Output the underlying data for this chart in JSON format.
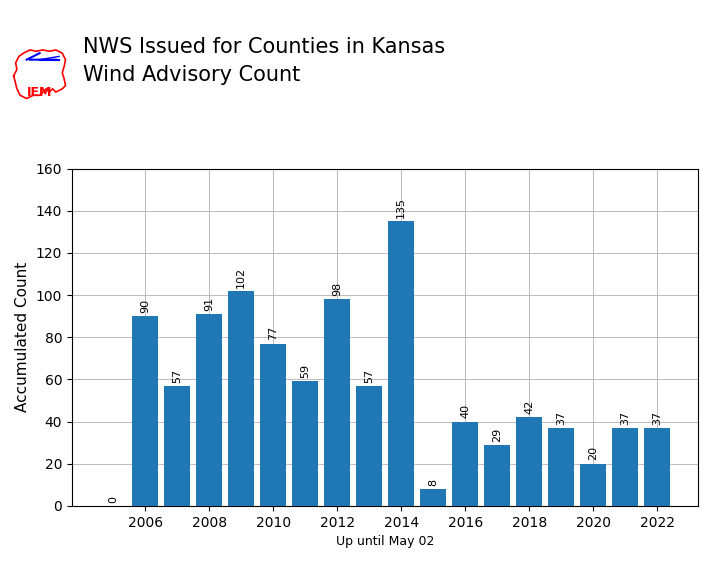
{
  "years": [
    2005,
    2006,
    2007,
    2008,
    2009,
    2010,
    2011,
    2012,
    2013,
    2014,
    2015,
    2016,
    2017,
    2018,
    2019,
    2020,
    2021,
    2022
  ],
  "values": [
    0,
    90,
    57,
    91,
    102,
    77,
    59,
    98,
    57,
    135,
    8,
    40,
    29,
    42,
    37,
    20,
    37,
    37
  ],
  "bar_color": "#1f77b4",
  "title_line1": "NWS Issued for Counties in Kansas",
  "title_line2": "Wind Advisory Count",
  "ylabel": "Accumulated Count",
  "xlabel": "Up until May 02",
  "ylim": [
    0,
    160
  ],
  "yticks": [
    0,
    20,
    40,
    60,
    80,
    100,
    120,
    140,
    160
  ],
  "xticks": [
    2006,
    2008,
    2010,
    2012,
    2014,
    2016,
    2018,
    2020,
    2022
  ],
  "background_color": "#ffffff",
  "grid_color": "#bbbbbb",
  "title_fontsize": 15,
  "tick_fontsize": 10,
  "bar_label_fontsize": 8,
  "ylabel_fontsize": 11,
  "xlabel_fontsize": 9
}
